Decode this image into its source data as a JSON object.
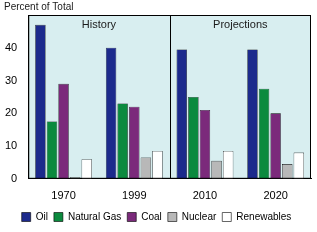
{
  "chart_data": {
    "type": "bar",
    "y_label": "Percent of Total",
    "annotations": [
      "History",
      "Projections"
    ],
    "categories": [
      "1970",
      "1999",
      "2010",
      "2020"
    ],
    "series": [
      {
        "name": "Oil",
        "color": "#1c2a8c",
        "values": [
          47,
          40,
          39.5,
          39.5
        ]
      },
      {
        "name": "Natural Gas",
        "color": "#0b8a3e",
        "values": [
          17.5,
          23,
          25,
          27.5
        ]
      },
      {
        "name": "Coal",
        "color": "#7b2a7b",
        "values": [
          29,
          22,
          21,
          20
        ]
      },
      {
        "name": "Nuclear",
        "color": "#b8b8b8",
        "values": [
          0.5,
          6.5,
          5.5,
          4.5
        ]
      },
      {
        "name": "Renewables",
        "color": "#ffffff",
        "values": [
          6,
          8.5,
          8.5,
          8
        ]
      }
    ],
    "ylim": [
      0,
      50
    ],
    "yticks": [
      0,
      10,
      20,
      30,
      40
    ],
    "grid": false,
    "legend": "bottom"
  }
}
